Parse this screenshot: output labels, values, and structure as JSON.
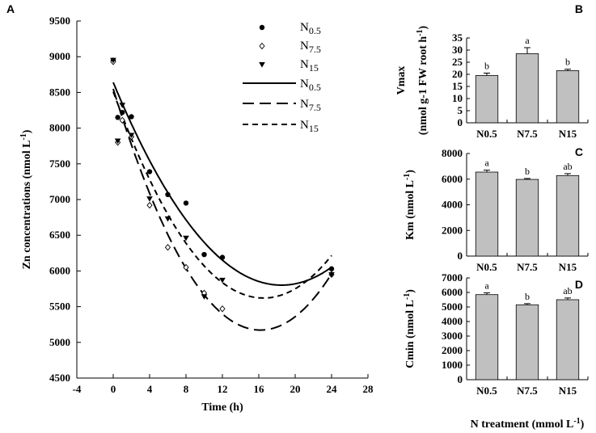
{
  "figure": {
    "shared_xlabel": "N treatment (mmol L",
    "shared_xlabel_sup": "-1",
    "shared_xlabel_end": ")"
  },
  "chart_data": [
    {
      "panel": "A",
      "type": "scatter",
      "title": "",
      "xlabel": "Time (h)",
      "ylabel": "Zn concentrations (nmol L",
      "ylabel_sup": "-1",
      "ylabel_end": ")",
      "xlim": [
        -4,
        28
      ],
      "ylim": [
        4500,
        9500
      ],
      "xticks": [
        -4,
        0,
        4,
        8,
        12,
        16,
        20,
        24,
        28
      ],
      "yticks": [
        4500,
        5000,
        5500,
        6000,
        6500,
        7000,
        7500,
        8000,
        8500,
        9000,
        9500
      ],
      "legend_position": "top-right",
      "legend": [
        {
          "kind": "marker",
          "marker": "filled-circle",
          "label": "N",
          "sub": "0.5"
        },
        {
          "kind": "marker",
          "marker": "open-diamond",
          "label": "N",
          "sub": "7.5"
        },
        {
          "kind": "marker",
          "marker": "filled-triangle-down",
          "label": "N",
          "sub": "15"
        },
        {
          "kind": "line",
          "dash": "solid",
          "label": "N",
          "sub": "0.5"
        },
        {
          "kind": "line",
          "dash": "long-dash",
          "label": "N",
          "sub": "7.5"
        },
        {
          "kind": "line",
          "dash": "short-dash",
          "label": "N",
          "sub": "15"
        }
      ],
      "series": [
        {
          "name": "N0.5",
          "marker": "filled-circle",
          "x": [
            0,
            0.5,
            1,
            2,
            4,
            6,
            8,
            10,
            12,
            24
          ],
          "y": [
            8950,
            8150,
            8220,
            8160,
            7390,
            7070,
            6950,
            6230,
            6190,
            6030
          ]
        },
        {
          "name": "N7.5",
          "marker": "open-diamond",
          "x": [
            0,
            0.5,
            1,
            2,
            4,
            6,
            8,
            10,
            12,
            24
          ],
          "y": [
            8930,
            7800,
            8110,
            7880,
            6920,
            6330,
            6050,
            5690,
            5470,
            5950
          ]
        },
        {
          "name": "N15",
          "marker": "filled-triangle-down",
          "x": [
            0,
            0.5,
            1,
            2,
            4,
            6,
            8,
            10,
            12,
            24
          ],
          "y": [
            8950,
            7820,
            8320,
            7900,
            7010,
            6730,
            6460,
            5640,
            5870,
            5950
          ]
        }
      ],
      "fits": [
        {
          "name": "N0.5",
          "dash": "solid",
          "a": 8640,
          "b": -307,
          "c": 8.3
        },
        {
          "name": "N7.5",
          "dash": "long-dash",
          "a": 8550,
          "b": -417.5,
          "c": 12.9
        },
        {
          "name": "N15",
          "dash": "short-dash",
          "a": 8510,
          "b": -350,
          "c": 10.6
        }
      ]
    },
    {
      "panel": "B",
      "type": "bar",
      "categories": [
        "N0.5",
        "N7.5",
        "N15"
      ],
      "values": [
        19.5,
        28.5,
        21.5
      ],
      "errors": [
        1.0,
        2.5,
        0.6
      ],
      "letters": [
        "b",
        "a",
        "b"
      ],
      "ylabel": "Vmax",
      "ylabel2": "(nmol g-1 FW root h",
      "ylabel2_sup": "-1",
      "ylabel2_end": ")",
      "ylim": [
        0,
        35
      ],
      "yticks": [
        0,
        5,
        10,
        15,
        20,
        25,
        30,
        35
      ]
    },
    {
      "panel": "C",
      "type": "bar",
      "categories": [
        "N0.5",
        "N7.5",
        "N15"
      ],
      "values": [
        6550,
        5980,
        6280
      ],
      "errors": [
        150,
        70,
        150
      ],
      "letters": [
        "a",
        "b",
        "ab"
      ],
      "ylabel": "Km (nmol L",
      "ylabel_sup": "-1",
      "ylabel_end": ")",
      "ylim": [
        0,
        8000
      ],
      "yticks": [
        0,
        2000,
        4000,
        6000,
        8000
      ]
    },
    {
      "panel": "D",
      "type": "bar",
      "categories": [
        "N0.5",
        "N7.5",
        "N15"
      ],
      "values": [
        5850,
        5150,
        5500
      ],
      "errors": [
        120,
        80,
        120
      ],
      "letters": [
        "a",
        "b",
        "ab"
      ],
      "ylabel": "Cmin (nmol L",
      "ylabel_sup": "-1",
      "ylabel_end": ")",
      "ylim": [
        0,
        7000
      ],
      "yticks": [
        0,
        1000,
        2000,
        3000,
        4000,
        5000,
        6000,
        7000
      ]
    }
  ]
}
